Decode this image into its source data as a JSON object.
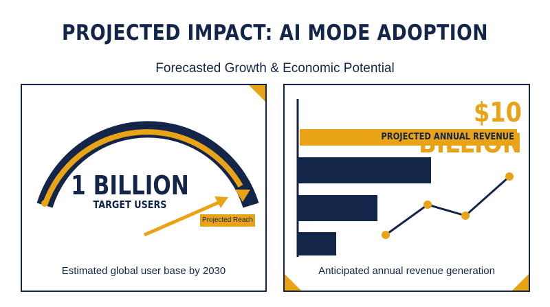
{
  "header": {
    "title": "PROJECTED IMPACT: AI MODE ADOPTION",
    "subtitle": "Forecasted Growth & Economic Potential"
  },
  "left_panel": {
    "headline_value": "1 BILLION",
    "headline_label": "TARGET USERS",
    "arrow_tag": "Projected Reach",
    "caption": "Estimated global user base by 2030"
  },
  "right_panel": {
    "headline_value": "$10 BILLION",
    "headline_label": "PROJECTED ANNUAL REVENUE",
    "caption": "Anticipated annual revenue generation"
  },
  "colors": {
    "navy": "#14254a",
    "gold": "#e8a317",
    "background": "#ffffff"
  },
  "icons": [
    "arc-gauge-icon",
    "arrow-icon",
    "bar-icon",
    "trend-line-icon"
  ]
}
